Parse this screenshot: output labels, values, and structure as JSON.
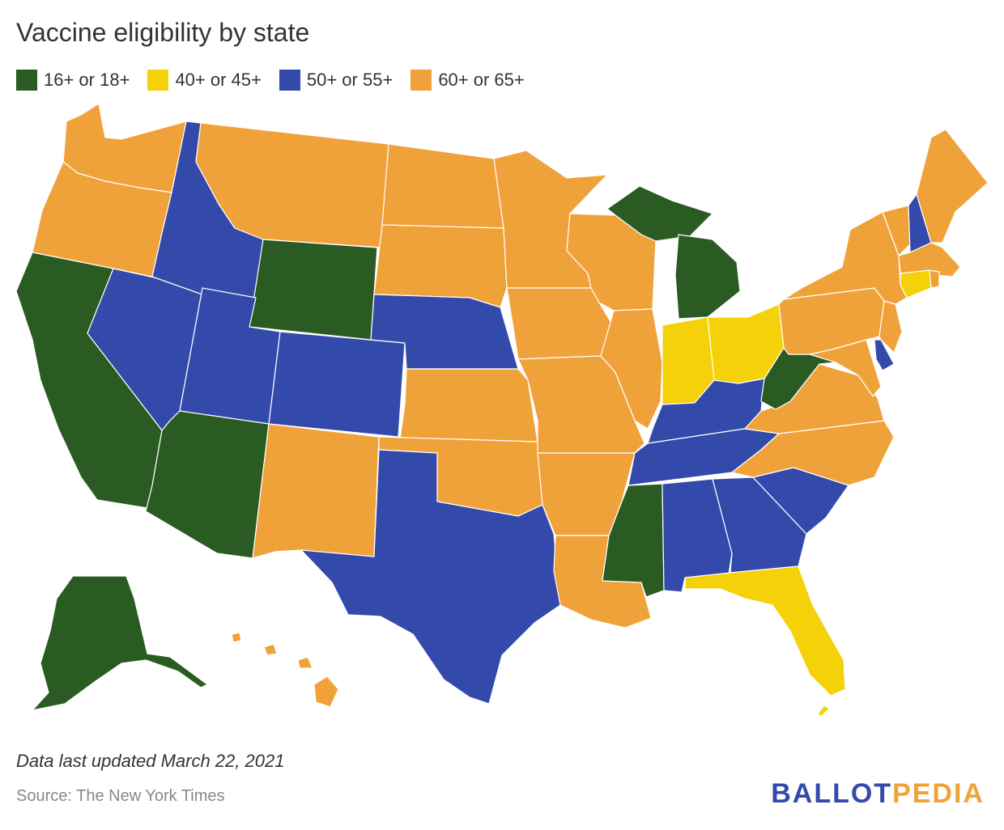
{
  "title": "Vaccine eligibility by state",
  "legend": [
    {
      "label": "16+ or 18+",
      "color": "#2a5b22"
    },
    {
      "label": "40+ or 45+",
      "color": "#f5d10a"
    },
    {
      "label": "50+ or 55+",
      "color": "#334aab"
    },
    {
      "label": "60+ or 65+",
      "color": "#f0a23a"
    }
  ],
  "map": {
    "groups": {
      "16+ or 18+": [
        "Alaska",
        "Arizona",
        "California",
        "Michigan",
        "Mississippi",
        "West Virginia",
        "Wyoming"
      ],
      "40+ or 45+": [
        "Connecticut",
        "Florida",
        "Indiana",
        "Ohio"
      ],
      "50+ or 55+": [
        "Alabama",
        "Colorado",
        "Delaware",
        "Georgia",
        "Idaho",
        "Kentucky",
        "Nebraska",
        "Nevada",
        "New Hampshire",
        "South Carolina",
        "Tennessee",
        "Texas",
        "Utah"
      ],
      "60+ or 65+": [
        "Arkansas",
        "Hawaii",
        "Illinois",
        "Iowa",
        "Kansas",
        "Louisiana",
        "Maine",
        "Maryland",
        "Massachusetts",
        "Minnesota",
        "Missouri",
        "Montana",
        "New Jersey",
        "New Mexico",
        "New York",
        "North Carolina",
        "North Dakota",
        "Oklahoma",
        "Oregon",
        "Pennsylvania",
        "Rhode Island",
        "South Dakota",
        "Vermont",
        "Virginia",
        "Washington",
        "Wisconsin"
      ]
    }
  },
  "note": "Data last updated March 22, 2021",
  "source": "Source: The New York Times",
  "logo": {
    "part1": "BALLOT",
    "part2": "PEDIA",
    "color1": "#334aab",
    "color2": "#f0a23a"
  }
}
